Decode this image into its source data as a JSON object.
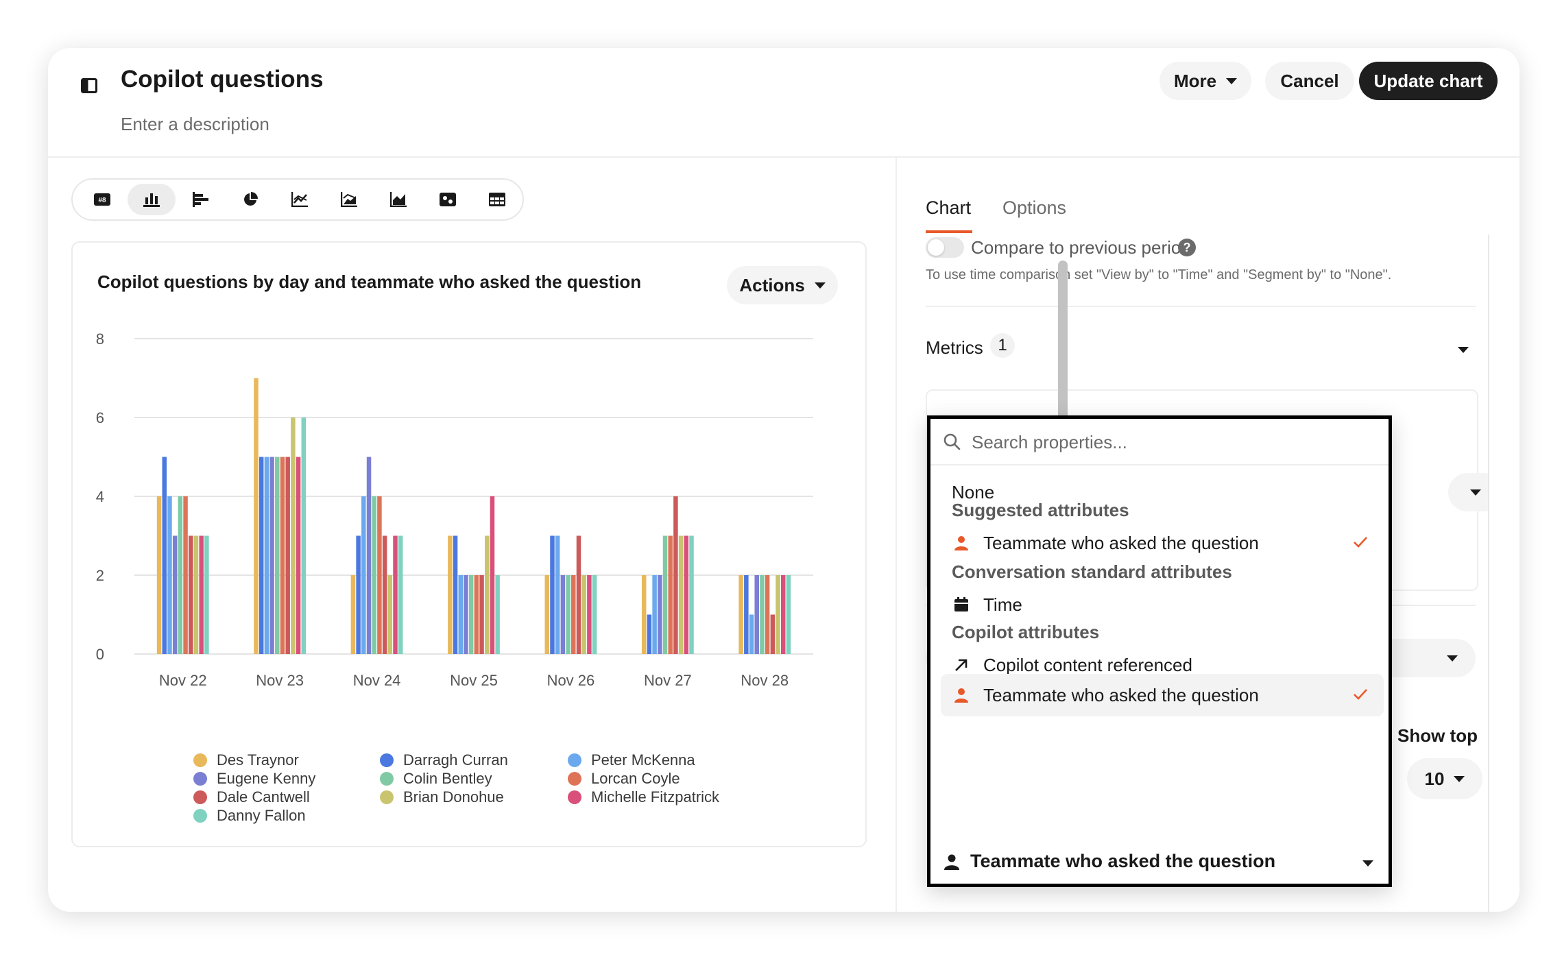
{
  "header": {
    "title": "Copilot questions",
    "description_placeholder": "Enter a description",
    "more_label": "More",
    "cancel_label": "Cancel",
    "update_label": "Update chart"
  },
  "chart_types": [
    "number-icon",
    "bar-chart-icon",
    "horizontal-bar-icon",
    "pie-chart-icon",
    "line-chart-icon",
    "area-line-icon",
    "area-chart-icon",
    "heatmap-icon",
    "table-icon"
  ],
  "chart_card": {
    "title": "Copilot questions by day and teammate who asked the question",
    "actions_label": "Actions"
  },
  "chart_data": {
    "type": "bar",
    "categories": [
      "Nov 22",
      "Nov 23",
      "Nov 24",
      "Nov 25",
      "Nov 26",
      "Nov 27",
      "Nov 28"
    ],
    "ylim": [
      0,
      8
    ],
    "yticks": [
      0,
      2,
      4,
      6,
      8
    ],
    "grid": true,
    "legend_position": "bottom",
    "series": [
      {
        "name": "Des Traynor",
        "color": "#e8b85a",
        "values": [
          4,
          7,
          2,
          3,
          2,
          2,
          2
        ]
      },
      {
        "name": "Darragh Curran",
        "color": "#4a78e0",
        "values": [
          5,
          5,
          3,
          3,
          3,
          1,
          2
        ]
      },
      {
        "name": "Peter McKenna",
        "color": "#6aa9ee",
        "values": [
          4,
          5,
          4,
          2,
          3,
          2,
          1
        ]
      },
      {
        "name": "Eugene Kenny",
        "color": "#7a7fd4",
        "values": [
          3,
          5,
          5,
          2,
          2,
          2,
          2
        ]
      },
      {
        "name": "Colin Bentley",
        "color": "#7fcaa4",
        "values": [
          4,
          5,
          4,
          2,
          2,
          3,
          2
        ]
      },
      {
        "name": "Lorcan Coyle",
        "color": "#dd7458",
        "values": [
          4,
          5,
          4,
          2,
          2,
          3,
          2
        ]
      },
      {
        "name": "Dale Cantwell",
        "color": "#cc5a5a",
        "values": [
          3,
          5,
          3,
          2,
          3,
          4,
          1
        ]
      },
      {
        "name": "Brian Donohue",
        "color": "#c9c46e",
        "values": [
          3,
          6,
          2,
          3,
          2,
          3,
          2
        ]
      },
      {
        "name": "Michelle Fitzpatrick",
        "color": "#d9507a",
        "values": [
          3,
          5,
          3,
          4,
          2,
          3,
          2
        ]
      },
      {
        "name": "Danny Fallon",
        "color": "#7fd1c0",
        "values": [
          3,
          6,
          3,
          2,
          2,
          3,
          2
        ]
      }
    ]
  },
  "legend_columns": [
    [
      "Des Traynor",
      "Eugene Kenny",
      "Dale Cantwell",
      "Danny Fallon"
    ],
    [
      "Darragh Curran",
      "Colin Bentley",
      "Brian Donohue"
    ],
    [
      "Peter McKenna",
      "Lorcan Coyle",
      "Michelle Fitzpatrick"
    ]
  ],
  "right_panel": {
    "tabs": [
      "Chart",
      "Options"
    ],
    "compare_label": "Compare to previous period",
    "compare_hint": "To use time comparison set \"View by\" to \"Time\" and \"Segment by\" to \"None\".",
    "metrics_label": "Metrics",
    "metrics_count": "1",
    "show_top_label": "Show top",
    "show_top_value": "10"
  },
  "dropdown": {
    "search_placeholder": "Search properties...",
    "none_label": "None",
    "groups": [
      {
        "label": "Suggested attributes",
        "items": [
          {
            "label": "Teammate who asked the question",
            "icon": "person-icon",
            "checked": true
          }
        ]
      },
      {
        "label": "Conversation standard attributes",
        "items": [
          {
            "label": "Time",
            "icon": "calendar-icon",
            "checked": false
          }
        ]
      },
      {
        "label": "Copilot attributes",
        "items": [
          {
            "label": "Copilot content referenced",
            "icon": "arrow-up-right-icon",
            "checked": false
          },
          {
            "label": "Teammate who asked the question",
            "icon": "person-icon",
            "checked": true
          }
        ]
      }
    ],
    "selected_label": "Teammate who asked the question"
  },
  "colors": {
    "accent": "#e8592a",
    "primary_button": "#1f1f1f"
  }
}
